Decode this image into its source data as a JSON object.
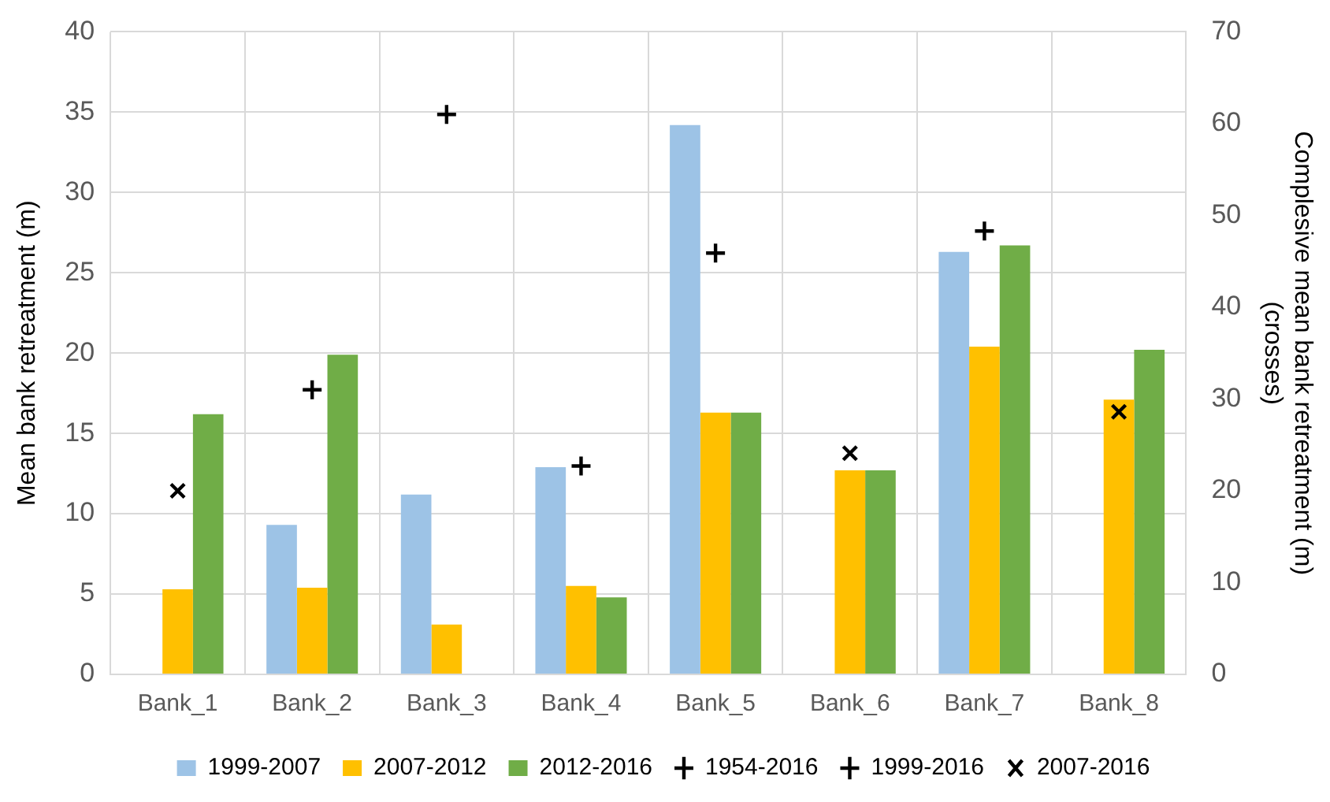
{
  "chart_data": {
    "type": "bar",
    "ylabel": "Mean bank retreatment (m)",
    "y2label": "Complesive mean bank retreatment (m) (crosses)",
    "categories": [
      "Bank_1",
      "Bank_2",
      "Bank_3",
      "Bank_4",
      "Bank_5",
      "Bank_6",
      "Bank_7",
      "Bank_8"
    ],
    "series": [
      {
        "name": "1999-2007",
        "color": "#9dc3e6",
        "values": [
          null,
          9.3,
          11.2,
          12.9,
          34.2,
          null,
          26.3,
          null
        ]
      },
      {
        "name": "2007-2012",
        "color": "#ffc000",
        "values": [
          5.3,
          5.4,
          3.1,
          5.5,
          16.3,
          12.7,
          20.4,
          17.1
        ]
      },
      {
        "name": "2012-2016",
        "color": "#70ad47",
        "values": [
          16.2,
          19.9,
          null,
          4.8,
          16.3,
          12.7,
          26.7,
          20.2
        ]
      },
      {
        "name": "1954-2016",
        "type": "scatter",
        "axis": "y2",
        "marker": "cross",
        "color": "#000000",
        "values": [
          null,
          null,
          61,
          null,
          null,
          null,
          null,
          null
        ]
      },
      {
        "name": "1999-2016",
        "type": "scatter",
        "axis": "y2",
        "marker": "cross",
        "color": "#000000",
        "values": [
          null,
          31,
          null,
          22.7,
          45.9,
          null,
          48.3,
          null
        ]
      },
      {
        "name": "2007-2016",
        "type": "scatter",
        "axis": "y2",
        "marker": "x",
        "color": "#000000",
        "values": [
          20,
          null,
          null,
          null,
          null,
          24.1,
          null,
          28.6
        ]
      }
    ],
    "ylim": [
      0,
      40
    ],
    "yticks": [
      0,
      5,
      10,
      15,
      20,
      25,
      30,
      35,
      40
    ],
    "y2lim": [
      0,
      70
    ],
    "y2ticks": [
      0,
      10,
      20,
      30,
      40,
      50,
      60,
      70
    ],
    "grid": true,
    "legend": "bottom"
  }
}
